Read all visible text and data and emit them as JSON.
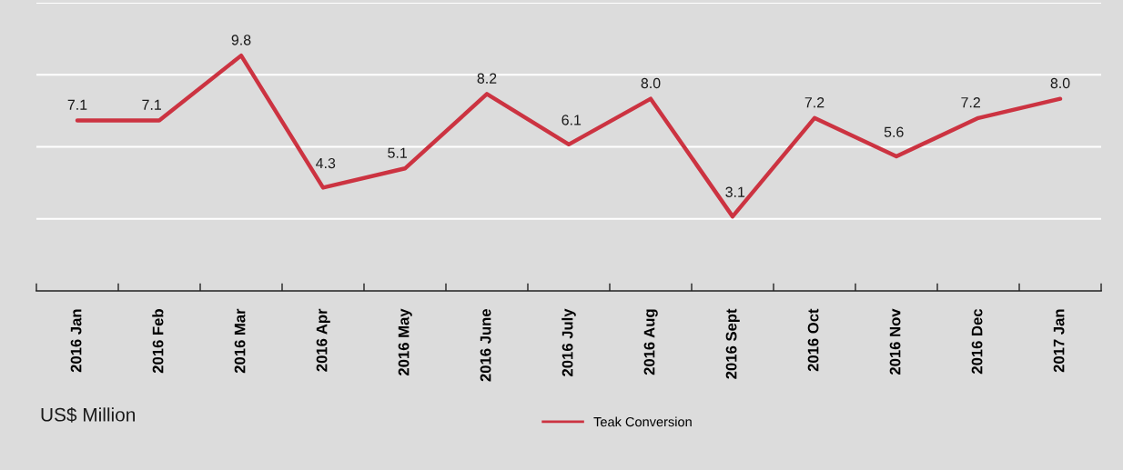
{
  "chart_data": {
    "type": "line",
    "annotations": [
      "US$ Million"
    ],
    "categories": [
      "2016 Jan",
      "2016 Feb",
      "2016 Mar",
      "2016 Apr",
      "2016 May",
      "2016 June",
      "2016 July",
      "2016 Aug",
      "2016 Sept",
      "2016 Oct",
      "2016 Nov",
      "2016 Dec",
      "2017 Jan"
    ],
    "series": [
      {
        "name": "Teak Conversion",
        "color": "#cc3341",
        "values": [
          7.1,
          7.1,
          9.8,
          4.3,
          5.1,
          8.2,
          6.1,
          8.0,
          3.1,
          7.2,
          5.6,
          7.2,
          8.0
        ],
        "value_labels": [
          "7.1",
          "7.1",
          "9.8",
          "4.3",
          "5.1",
          "8.2",
          "6.1",
          "8.0",
          "3.1",
          "7.2",
          "5.6",
          "7.2",
          "8.0"
        ]
      }
    ],
    "ylim": [
      0,
      12
    ],
    "yticks": [
      {
        "value": 3,
        "label": null
      },
      {
        "value": 6,
        "label": null
      },
      {
        "value": 9,
        "label": null
      },
      {
        "value": 12,
        "label": null
      }
    ],
    "tick_labels": "x",
    "grid": "y",
    "legend": "bottom",
    "marker": "none",
    "line_style": "solid"
  }
}
